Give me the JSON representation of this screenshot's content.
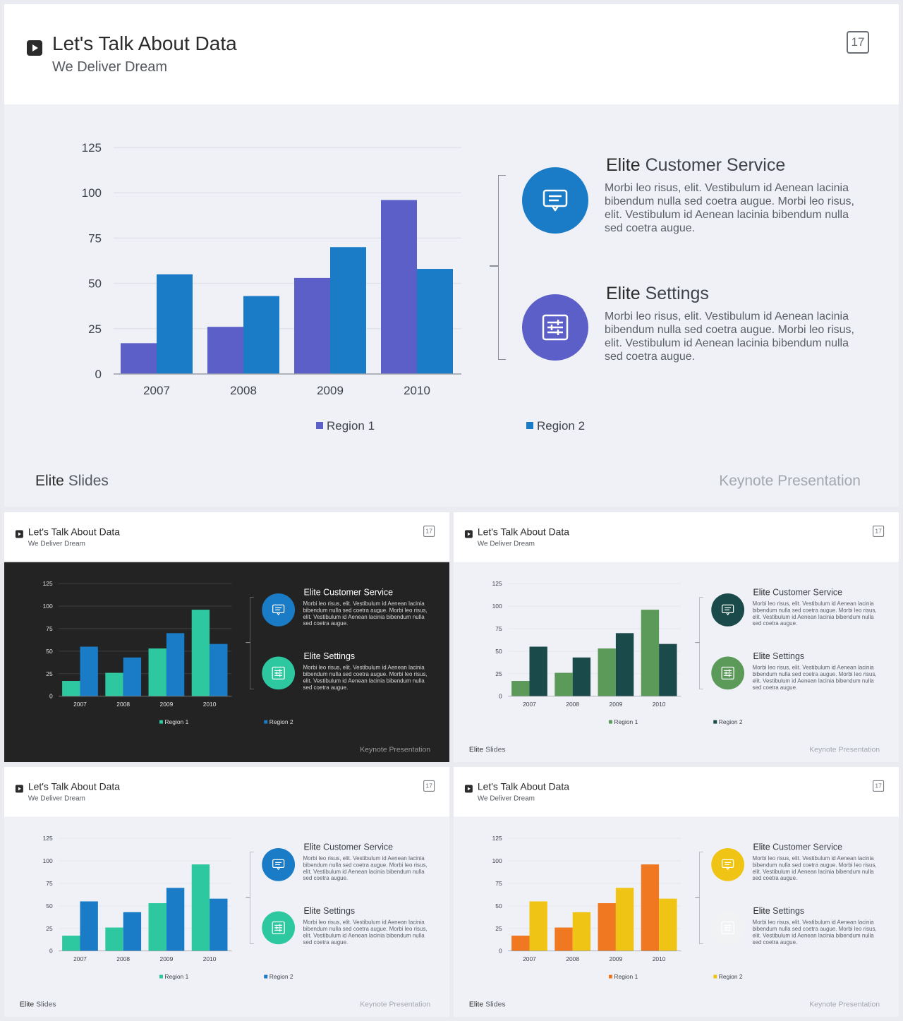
{
  "slide": {
    "title": "Let's Talk About Data",
    "subtitle": "We Deliver Dream",
    "page_number": "17",
    "features": [
      {
        "title_bold": "Elite",
        "title_light": "Customer Service",
        "icon": "message-icon",
        "text": "Morbi leo risus, elit. Vestibulum id Aenean lacinia bibendum nulla sed coetra augue. Morbi leo risus, elit. Vestibulum id Aenean lacinia bibendum nulla sed coetra augue."
      },
      {
        "title_bold": "Elite",
        "title_light": "Settings",
        "icon": "sliders-icon",
        "text": "Morbi leo risus, elit. Vestibulum id Aenean lacinia bibendum nulla sed coetra augue. Morbi leo risus, elit. Vestibulum id Aenean lacinia bibendum nulla sed coetra augue."
      }
    ],
    "brand_bold": "Elite",
    "brand_light": "Slides",
    "footer_right": "Keynote Presentation"
  },
  "chart_data": {
    "type": "bar",
    "categories": [
      "2007",
      "2008",
      "2009",
      "2010"
    ],
    "series": [
      {
        "name": "Region 1",
        "values": [
          17,
          26,
          53,
          96
        ]
      },
      {
        "name": "Region 2",
        "values": [
          55,
          43,
          70,
          58
        ]
      }
    ],
    "ylim": [
      0,
      125
    ],
    "yticks": [
      0,
      25,
      50,
      75,
      100,
      125
    ],
    "grid": true,
    "legend": "bottom"
  },
  "themes": [
    {
      "name": "blue-purple",
      "series_colors": [
        "#5b5fc7",
        "#1a7cc6"
      ],
      "icon_colors": [
        "#1a7cc6",
        "#5b5fc7"
      ],
      "dark": false,
      "brand": true
    },
    {
      "name": "dark-teal",
      "series_colors": [
        "#2ec8a0",
        "#1a7cc6"
      ],
      "icon_colors": [
        "#1a7cc6",
        "#2ec8a0"
      ],
      "dark": true,
      "brand": false
    },
    {
      "name": "green",
      "series_colors": [
        "#5c9a5a",
        "#1a4a4a"
      ],
      "icon_colors": [
        "#1a4a4a",
        "#5c9a5a"
      ],
      "dark": false,
      "brand": true
    },
    {
      "name": "light-teal",
      "series_colors": [
        "#2ec8a0",
        "#1a7cc6"
      ],
      "icon_colors": [
        "#1a7cc6",
        "#2ec8a0"
      ],
      "dark": false,
      "brand": true
    },
    {
      "name": "orange-yellow",
      "series_colors": [
        "#f07820",
        "#f0c414"
      ],
      "icon_colors": [
        "#f0c414",
        "#f1f2f4"
      ],
      "dark": false,
      "brand": true
    }
  ]
}
